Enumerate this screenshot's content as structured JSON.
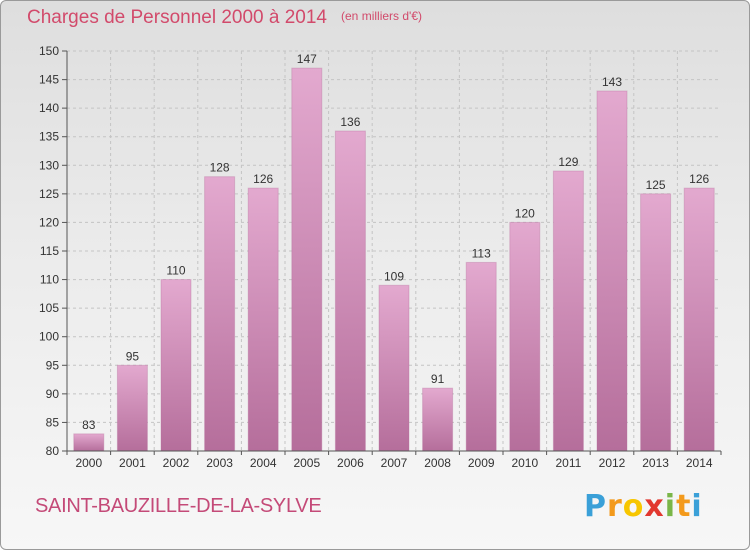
{
  "title": "Charges de Personnel 2000 à 2014",
  "subtitle": "(en milliers d'€)",
  "commune": "SAINT-BAUZILLE-DE-LA-SYLVE",
  "logo": {
    "letters": [
      "P",
      "r",
      "o",
      "x",
      "i",
      "t",
      "i"
    ],
    "colors": [
      "#3aa0d8",
      "#f39a1c",
      "#f7c600",
      "#e2382f",
      "#7ab648",
      "#f39a1c",
      "#3aa0d8"
    ]
  },
  "colors": {
    "bar": "#d58bb7",
    "bar_light": "#e3a9cf",
    "bar_dark": "#b56e9b",
    "text": "#d24a6b"
  },
  "chart_data": {
    "type": "bar",
    "categories": [
      "2000",
      "2001",
      "2002",
      "2003",
      "2004",
      "2005",
      "2006",
      "2007",
      "2008",
      "2009",
      "2010",
      "2011",
      "2012",
      "2013",
      "2014"
    ],
    "values": [
      83,
      95,
      110,
      128,
      126,
      147,
      136,
      109,
      91,
      113,
      120,
      129,
      143,
      125,
      126
    ],
    "ylim": [
      80,
      150
    ],
    "yticks": [
      80,
      85,
      90,
      95,
      100,
      105,
      110,
      115,
      120,
      125,
      130,
      135,
      140,
      145,
      150
    ],
    "grid": true
  }
}
